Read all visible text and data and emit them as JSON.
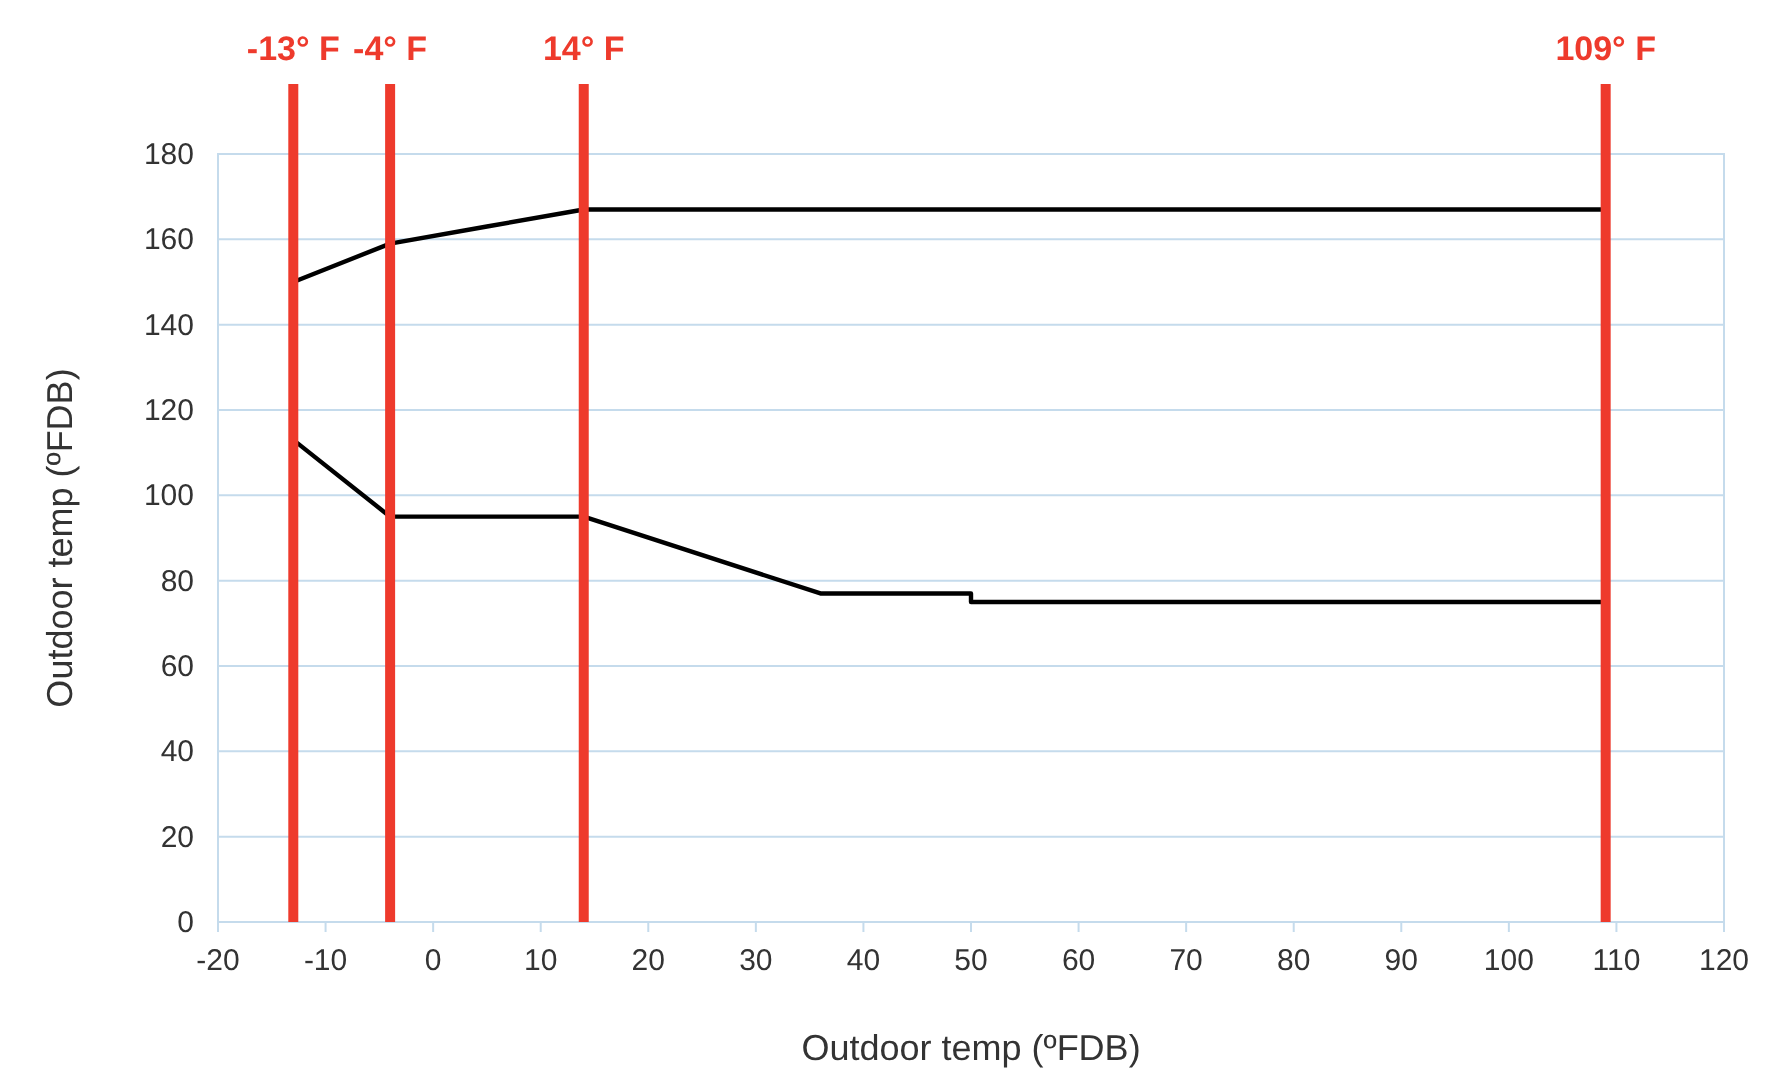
{
  "chart_data": {
    "type": "line",
    "xlabel": "Outdoor temp (ºFDB)",
    "ylabel": "Outdoor temp (ºFDB)",
    "xlim": [
      -20,
      120
    ],
    "xticks": [
      -20,
      -10,
      0,
      10,
      20,
      30,
      40,
      50,
      60,
      70,
      80,
      90,
      100,
      110,
      120
    ],
    "ylim": [
      0,
      180
    ],
    "yticks": [
      0,
      20,
      40,
      60,
      80,
      100,
      120,
      140,
      160,
      180
    ],
    "grid": "y",
    "series": [
      {
        "color": "#000000",
        "x": [
          -13,
          -4,
          5,
          14,
          109
        ],
        "values": [
          150,
          159,
          163,
          167,
          167
        ]
      },
      {
        "color": "#000000",
        "x": [
          -13,
          -4,
          14,
          36,
          50,
          50,
          109
        ],
        "values": [
          113,
          95,
          95,
          77,
          77,
          75,
          75
        ]
      }
    ],
    "ref_lines": [
      {
        "axis": "x",
        "value": -13,
        "label": "-13° F",
        "color": "#ee3a2c"
      },
      {
        "axis": "x",
        "value": -4,
        "label": "-4° F",
        "color": "#ee3a2c"
      },
      {
        "axis": "x",
        "value": 14,
        "label": "14° F",
        "color": "#ee3a2c"
      },
      {
        "axis": "x",
        "value": 109,
        "label": "109° F",
        "color": "#ee3a2c"
      }
    ]
  }
}
